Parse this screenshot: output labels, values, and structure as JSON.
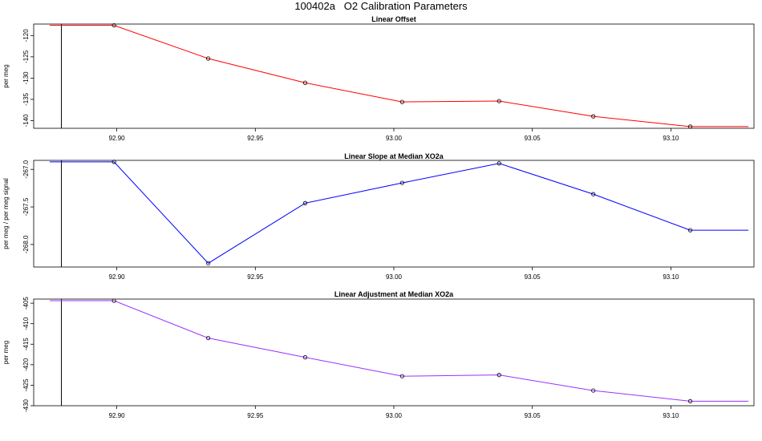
{
  "title": "100402a   O2 Calibration Parameters",
  "chart_data": [
    {
      "type": "line",
      "title": "Linear Offset",
      "ylabel": "per meg",
      "color": "#ff0000",
      "x": [
        92.899,
        92.933,
        92.968,
        93.003,
        93.038,
        93.072,
        93.107
      ],
      "values": [
        -117.6,
        -125.4,
        -131.1,
        -135.6,
        -135.4,
        -139.0,
        -141.4
      ],
      "start_value": -117.6,
      "end_value": -141.4,
      "xlim": [
        92.87,
        93.13
      ],
      "ylim": [
        -141.8,
        -117.3
      ],
      "xticks": [
        "92.90",
        "92.95",
        "93.00",
        "93.05",
        "93.10"
      ],
      "yticks": [
        "-120",
        "-125",
        "-130",
        "-135",
        "-140"
      ]
    },
    {
      "type": "line",
      "title": "Linear Slope at Median XO2a",
      "ylabel": "per meg / per meg signal",
      "color": "#0000ff",
      "x": [
        92.899,
        92.933,
        92.968,
        93.003,
        93.038,
        93.072,
        93.107
      ],
      "values": [
        -266.9,
        -268.25,
        -267.45,
        -267.18,
        -266.92,
        -267.33,
        -267.81
      ],
      "start_value": -266.9,
      "end_value": -267.81,
      "xlim": [
        92.87,
        93.13
      ],
      "ylim": [
        -268.3,
        -266.88
      ],
      "xticks": [
        "92.90",
        "92.95",
        "93.00",
        "93.05",
        "93.10"
      ],
      "yticks": [
        "-267.0",
        "-267.5",
        "-268.0"
      ]
    },
    {
      "type": "line",
      "title": "Linear Adjustment at Median XO2a",
      "ylabel": "per meg",
      "color": "#9b30ff",
      "x": [
        92.899,
        92.933,
        92.968,
        93.003,
        93.038,
        93.072,
        93.107
      ],
      "values": [
        -404.4,
        -413.5,
        -418.2,
        -422.8,
        -422.5,
        -426.3,
        -428.9
      ],
      "start_value": -404.4,
      "end_value": -428.9,
      "xlim": [
        92.87,
        93.13
      ],
      "ylim": [
        -430.0,
        -404.0
      ],
      "xticks": [
        "92.90",
        "92.95",
        "93.00",
        "93.05",
        "93.10"
      ],
      "yticks": [
        "-405",
        "-410",
        "-415",
        "-420",
        "-425",
        "-430"
      ]
    }
  ],
  "reference_line_x": 92.88
}
